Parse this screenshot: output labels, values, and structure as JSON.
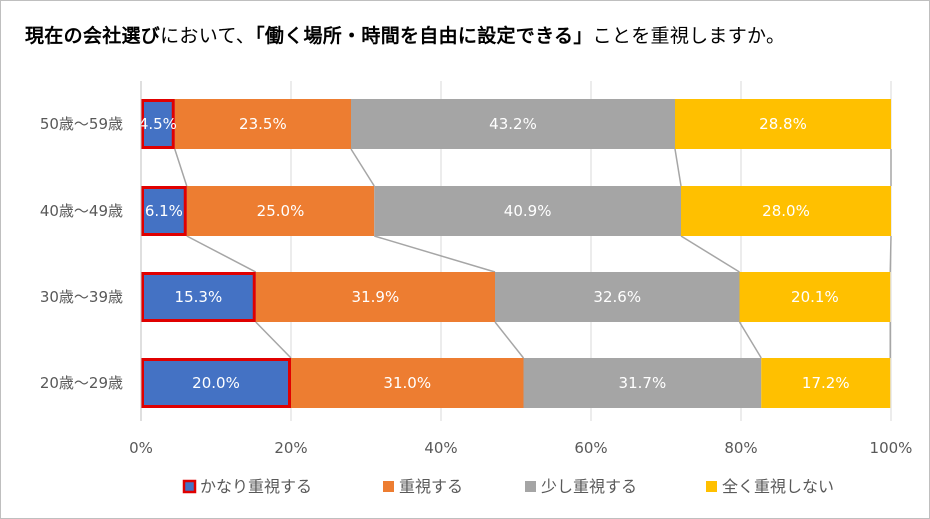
{
  "title": {
    "part1": "現在の会社選び",
    "part2": "において、",
    "part3": "「働く場所・時間を自由に設定できる」",
    "part4": "ことを重視しますか。"
  },
  "chart_data": {
    "type": "bar",
    "orientation": "horizontal",
    "stacked": "100%",
    "categories": [
      "50歳～59歳",
      "40歳～49歳",
      "30歳～39歳",
      "20歳～29歳"
    ],
    "series": [
      {
        "name": "かなり重視する",
        "values": [
          4.5,
          6.1,
          15.3,
          20.0
        ],
        "labels": [
          "4.5%",
          "6.1%",
          "15.3%",
          "20.0%"
        ],
        "color": "#4472C4",
        "highlight": "#E00000"
      },
      {
        "name": "重視する",
        "values": [
          23.5,
          25.0,
          31.9,
          31.0
        ],
        "labels": [
          "23.5%",
          "25.0%",
          "31.9%",
          "31.0%"
        ],
        "color": "#ED7D31"
      },
      {
        "name": "少し重視する",
        "values": [
          43.2,
          40.9,
          32.6,
          31.7
        ],
        "labels": [
          "43.2%",
          "40.9%",
          "32.6%",
          "31.7%"
        ],
        "color": "#A5A5A5"
      },
      {
        "name": "全く重視しない",
        "values": [
          28.8,
          28.0,
          20.1,
          17.2
        ],
        "labels": [
          "28.8%",
          "28.0%",
          "20.1%",
          "17.2%"
        ],
        "color": "#FFC000"
      }
    ],
    "xticks": [
      "0%",
      "20%",
      "40%",
      "60%",
      "80%",
      "100%"
    ],
    "xlim": [
      0,
      100
    ],
    "series_lines": true,
    "legend_position": "bottom"
  }
}
